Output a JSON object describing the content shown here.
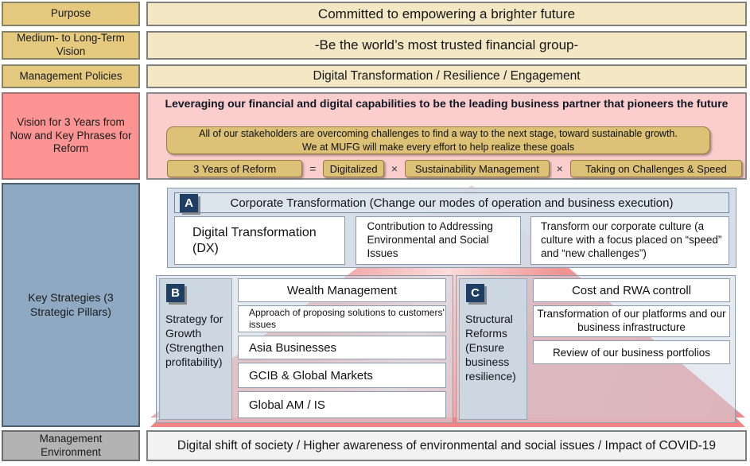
{
  "rows": [
    {
      "label": "Purpose",
      "content": "Committed to empowering a brighter future"
    },
    {
      "label": "Medium- to Long-Term Vision",
      "content": "-Be the world’s most trusted financial group-"
    },
    {
      "label": "Management Policies",
      "content": "Digital Transformation / Resilience / Engagement"
    }
  ],
  "vision": {
    "label": "Vision for 3 Years from Now and Key Phrases for Reform",
    "headline": "Leveraging our financial and digital capabilities to be the leading business partner that pioneers the future",
    "stakeholders_line1": "All of our stakeholders are overcoming challenges to find a way to the next stage, toward sustainable growth.",
    "stakeholders_line2": "We at MUFG will make every effort to help realize these goals",
    "formula": {
      "lhs": "3 Years of Reform",
      "equals": "=",
      "times": "×",
      "terms": [
        "Digitalized",
        "Sustainability Management",
        "Taking on Challenges & Speed"
      ]
    }
  },
  "key_strategies": {
    "label": "Key Strategies (3 Strategic Pillars)",
    "sections": {
      "a": {
        "badge": "A",
        "title": "Corporate Transformation (Change our modes of operation and business execution)",
        "boxes": [
          "Digital Transformation (DX)",
          "Contribution to Addressing Environmental and Social Issues",
          "Transform our corporate culture (a culture with a focus placed on “speed” and “new challenges”)"
        ]
      },
      "b": {
        "badge": "B",
        "title": "Strategy for Growth (Strengthen profitability)",
        "boxes": [
          "Wealth Management",
          "Approach of proposing solutions to customers' issues",
          "Asia Businesses",
          "GCIB & Global Markets",
          "Global AM / IS"
        ]
      },
      "c": {
        "badge": "C",
        "title": "Structural Reforms (Ensure business resilience)",
        "boxes": [
          "Cost and RWA controll",
          "Transformation of our platforms and our business infrastructure",
          "Review of our business portfolios"
        ]
      }
    }
  },
  "management_environment": {
    "label": "Management Environment",
    "content": "Digital shift of society / Higher awareness of environmental and social issues / Impact of COVID-19"
  },
  "colors": {
    "label_gold": "#E5C97F",
    "label_pink": "#FC9494",
    "label_blue": "#8FA9C2",
    "label_grey": "#B3B3B3",
    "content_cream": "#F3E7C4",
    "panel_pink": "#FBCDCD",
    "gold_box": "#DCC176",
    "badge_navy": "#1E3F63",
    "pyramid_pink": "#F2A2A2",
    "pyramid_base": "#F38585",
    "section_panel_blue": "#CDD7E1"
  }
}
